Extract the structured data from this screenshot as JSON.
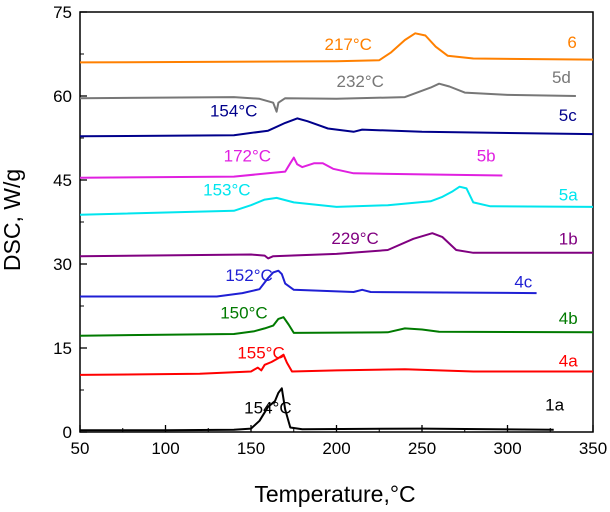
{
  "chart_data": {
    "type": "line",
    "title": "",
    "xlabel": "Temperature,°C",
    "ylabel": "DSC, W/g",
    "xlim": [
      50,
      350
    ],
    "ylim": [
      0,
      75
    ],
    "xticks": [
      50,
      100,
      150,
      200,
      250,
      300,
      350
    ],
    "yticks": [
      0,
      15,
      30,
      45,
      60,
      75
    ],
    "grid": false,
    "legend": "none",
    "series": [
      {
        "name": "1a",
        "color": "#000000",
        "label_at": [
          322,
          3.8
        ],
        "points": [
          [
            50,
            0.3
          ],
          [
            100,
            0.3
          ],
          [
            140,
            0.4
          ],
          [
            150,
            0.6
          ],
          [
            155,
            2
          ],
          [
            160,
            4.5
          ],
          [
            164,
            5.5
          ],
          [
            166,
            7
          ],
          [
            168,
            7.8
          ],
          [
            170,
            4
          ],
          [
            173,
            0.8
          ],
          [
            180,
            0.5
          ],
          [
            250,
            0.6
          ],
          [
            327,
            0.4
          ]
        ],
        "annotation": {
          "text": "154°C",
          "at": [
            146,
            3.3
          ]
        }
      },
      {
        "name": "4a",
        "color": "#ff0000",
        "label_at": [
          330,
          11.7
        ],
        "points": [
          [
            50,
            10.2
          ],
          [
            120,
            10.4
          ],
          [
            150,
            10.8
          ],
          [
            154,
            11.5
          ],
          [
            156,
            11
          ],
          [
            158,
            12
          ],
          [
            162,
            12.5
          ],
          [
            166,
            13.2
          ],
          [
            169,
            13.8
          ],
          [
            171,
            12.4
          ],
          [
            174,
            10.8
          ],
          [
            200,
            11
          ],
          [
            240,
            11.2
          ],
          [
            280,
            10.8
          ],
          [
            350,
            10.8
          ]
        ],
        "annotation": {
          "text": "155°C",
          "at": [
            142,
            13.1
          ]
        }
      },
      {
        "name": "4b",
        "color": "#007a00",
        "label_at": [
          330,
          19.3
        ],
        "points": [
          [
            50,
            17.2
          ],
          [
            140,
            17.5
          ],
          [
            152,
            18
          ],
          [
            158,
            18.5
          ],
          [
            163,
            19
          ],
          [
            166,
            20.2
          ],
          [
            169,
            20.5
          ],
          [
            172,
            19.2
          ],
          [
            175,
            17.7
          ],
          [
            230,
            17.8
          ],
          [
            240,
            18.5
          ],
          [
            250,
            18.3
          ],
          [
            260,
            17.9
          ],
          [
            350,
            17.8
          ]
        ],
        "annotation": {
          "text": "150°C",
          "at": [
            132,
            20.3
          ]
        }
      },
      {
        "name": "4c",
        "color": "#1f1fd4",
        "label_at": [
          304,
          25.8
        ],
        "points": [
          [
            50,
            24.2
          ],
          [
            130,
            24.2
          ],
          [
            145,
            24.8
          ],
          [
            155,
            25.5
          ],
          [
            160,
            27.5
          ],
          [
            163,
            28.5
          ],
          [
            166,
            28.8
          ],
          [
            168,
            28.2
          ],
          [
            170,
            26.5
          ],
          [
            175,
            25.4
          ],
          [
            210,
            25
          ],
          [
            215,
            25.4
          ],
          [
            220,
            25
          ],
          [
            317,
            24.8
          ]
        ],
        "annotation": {
          "text": "152°C",
          "at": [
            135,
            27
          ]
        }
      },
      {
        "name": "1b",
        "color": "#800080",
        "label_at": [
          330,
          33.5
        ],
        "points": [
          [
            50,
            31.4
          ],
          [
            150,
            31.7
          ],
          [
            158,
            31.5
          ],
          [
            160,
            31
          ],
          [
            163,
            31.4
          ],
          [
            200,
            31.8
          ],
          [
            230,
            32.5
          ],
          [
            245,
            34.5
          ],
          [
            256,
            35.5
          ],
          [
            262,
            34.8
          ],
          [
            270,
            32.5
          ],
          [
            280,
            32
          ],
          [
            350,
            32
          ]
        ],
        "annotation": {
          "text": "229°C",
          "at": [
            197,
            33.6
          ]
        }
      },
      {
        "name": "5a",
        "color": "#00e5ee",
        "label_at": [
          330,
          41.3
        ],
        "points": [
          [
            50,
            38.8
          ],
          [
            140,
            39.5
          ],
          [
            150,
            40.5
          ],
          [
            158,
            41.5
          ],
          [
            165,
            41.8
          ],
          [
            175,
            41
          ],
          [
            200,
            40.2
          ],
          [
            230,
            40.5
          ],
          [
            255,
            41.2
          ],
          [
            262,
            42
          ],
          [
            268,
            43
          ],
          [
            272,
            43.8
          ],
          [
            276,
            43.5
          ],
          [
            280,
            41
          ],
          [
            290,
            40.3
          ],
          [
            350,
            40.2
          ]
        ],
        "annotation": {
          "text": "153°C",
          "at": [
            122,
            42.2
          ]
        }
      },
      {
        "name": "5b",
        "color": "#e020e0",
        "label_at": [
          282,
          48.3
        ],
        "points": [
          [
            50,
            45.4
          ],
          [
            140,
            45.6
          ],
          [
            160,
            46.2
          ],
          [
            170,
            46.5
          ],
          [
            173,
            48
          ],
          [
            175,
            49
          ],
          [
            177,
            47.8
          ],
          [
            180,
            47.3
          ],
          [
            187,
            48
          ],
          [
            192,
            48
          ],
          [
            198,
            47
          ],
          [
            210,
            46.2
          ],
          [
            250,
            46
          ],
          [
            297,
            45.8
          ]
        ],
        "annotation": {
          "text": "172°C",
          "at": [
            134,
            48.3
          ]
        }
      },
      {
        "name": "5c",
        "color": "#00008b",
        "label_at": [
          330,
          55.5
        ],
        "points": [
          [
            50,
            52.8
          ],
          [
            140,
            53
          ],
          [
            160,
            53.8
          ],
          [
            170,
            55.2
          ],
          [
            177,
            56
          ],
          [
            183,
            55.5
          ],
          [
            195,
            54.2
          ],
          [
            210,
            53.6
          ],
          [
            215,
            54
          ],
          [
            250,
            53.6
          ],
          [
            350,
            53.2
          ]
        ],
        "annotation": {
          "text": "154°C",
          "at": [
            126,
            56.3
          ]
        }
      },
      {
        "name": "5d",
        "color": "#777777",
        "label_at": [
          326,
          62.3
        ],
        "points": [
          [
            50,
            59.6
          ],
          [
            140,
            59.8
          ],
          [
            155,
            59.5
          ],
          [
            163,
            58.8
          ],
          [
            165,
            57.2
          ],
          [
            166,
            58.8
          ],
          [
            170,
            59.6
          ],
          [
            200,
            59.5
          ],
          [
            240,
            59.8
          ],
          [
            255,
            61.5
          ],
          [
            260,
            62.2
          ],
          [
            266,
            61.7
          ],
          [
            275,
            60.6
          ],
          [
            300,
            60.2
          ],
          [
            340,
            60
          ]
        ],
        "annotation": {
          "text": "232°C",
          "at": [
            200,
            61.6
          ]
        }
      },
      {
        "name": "6",
        "color": "#ff8000",
        "label_at": [
          335,
          68.6
        ],
        "points": [
          [
            50,
            66
          ],
          [
            200,
            66.2
          ],
          [
            225,
            66.4
          ],
          [
            232,
            67.8
          ],
          [
            240,
            70
          ],
          [
            246,
            71.2
          ],
          [
            252,
            70.8
          ],
          [
            258,
            68.8
          ],
          [
            265,
            67.2
          ],
          [
            280,
            66.7
          ],
          [
            350,
            66.5
          ]
        ],
        "annotation": {
          "text": "217°C",
          "at": [
            193,
            68.2
          ]
        }
      }
    ]
  }
}
